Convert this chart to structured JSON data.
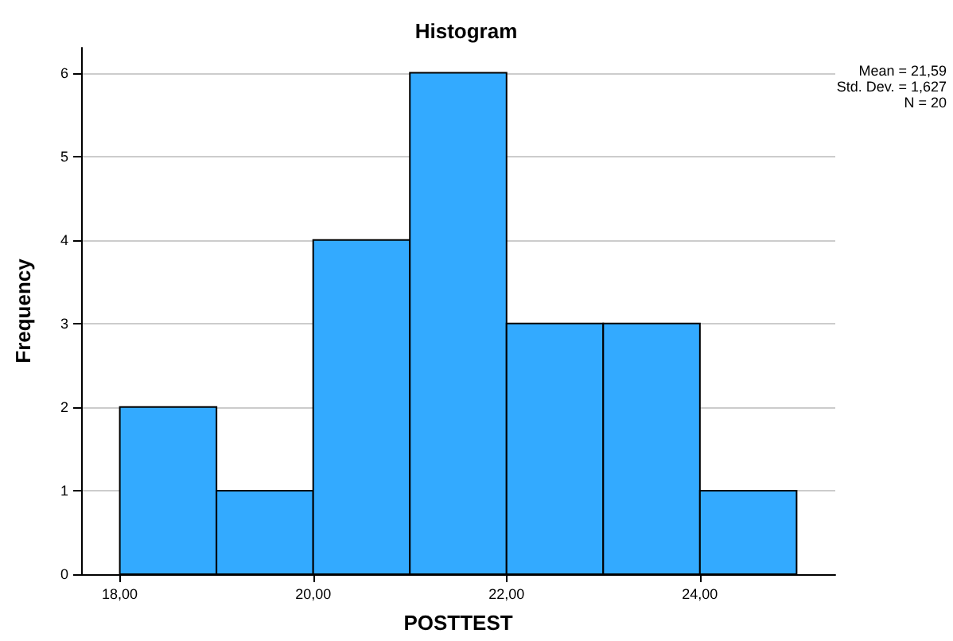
{
  "chart_data": {
    "type": "histogram",
    "title": "Histogram",
    "xlabel": "POSTTEST",
    "ylabel": "Frequency",
    "bins": [
      18,
      19,
      20,
      21,
      22,
      23,
      24,
      25
    ],
    "values": [
      2,
      1,
      4,
      6,
      3,
      3,
      1
    ],
    "color": "#33aaff",
    "xlim": [
      17.6,
      25.4
    ],
    "xticks": [
      {
        "value": 18,
        "label": "18,00"
      },
      {
        "value": 20,
        "label": "20,00"
      },
      {
        "value": 22,
        "label": "22,00"
      },
      {
        "value": 24,
        "label": "24,00"
      }
    ],
    "ylim": [
      0,
      6.3
    ],
    "yticks": [
      0,
      1,
      2,
      3,
      4,
      5,
      6
    ],
    "grid": "y",
    "annotations": [
      "Mean = 21,59",
      "Std. Dev. = 1,627",
      "N = 20"
    ]
  }
}
